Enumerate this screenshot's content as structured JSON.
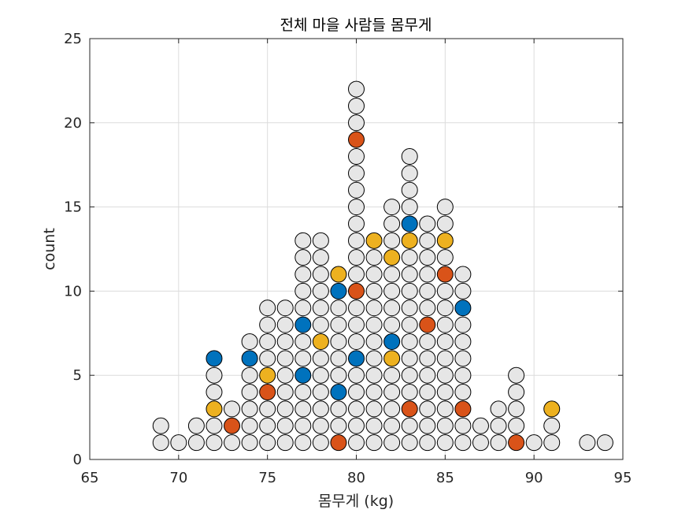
{
  "chart_data": {
    "type": "scatter",
    "title": "전체 마을 사람들 몸무게",
    "xlabel": "몸무게 (kg)",
    "ylabel": "count",
    "xlim": [
      65,
      95
    ],
    "ylim": [
      0,
      25
    ],
    "xticks": [
      65,
      70,
      75,
      80,
      85,
      90,
      95
    ],
    "yticks": [
      0,
      5,
      10,
      15,
      20,
      25
    ],
    "grid": true,
    "colors": {
      "default": "#e6e6e6",
      "blue": "#0072bd",
      "orange": "#d95319",
      "yellow": "#edb120",
      "edge": "#000000"
    },
    "column_heights": {
      "69": 2,
      "70": 1,
      "71": 2,
      "72": 6,
      "73": 3,
      "74": 7,
      "75": 9,
      "76": 9,
      "77": 13,
      "78": 13,
      "79": 11,
      "80": 22,
      "81": 13,
      "82": 15,
      "83": 18,
      "84": 14,
      "85": 15,
      "86": 11,
      "87": 2,
      "88": 3,
      "89": 5,
      "90": 1,
      "91": 3,
      "93": 1,
      "94": 1
    },
    "highlighted": [
      {
        "x": 72,
        "y": 6,
        "color": "blue"
      },
      {
        "x": 72,
        "y": 3,
        "color": "yellow"
      },
      {
        "x": 73,
        "y": 2,
        "color": "orange"
      },
      {
        "x": 74,
        "y": 6,
        "color": "blue"
      },
      {
        "x": 75,
        "y": 5,
        "color": "yellow"
      },
      {
        "x": 75,
        "y": 4,
        "color": "orange"
      },
      {
        "x": 77,
        "y": 8,
        "color": "blue"
      },
      {
        "x": 77,
        "y": 5,
        "color": "blue"
      },
      {
        "x": 78,
        "y": 7,
        "color": "yellow"
      },
      {
        "x": 79,
        "y": 11,
        "color": "yellow"
      },
      {
        "x": 79,
        "y": 10,
        "color": "blue"
      },
      {
        "x": 79,
        "y": 4,
        "color": "blue"
      },
      {
        "x": 79,
        "y": 1,
        "color": "orange"
      },
      {
        "x": 80,
        "y": 19,
        "color": "orange"
      },
      {
        "x": 80,
        "y": 10,
        "color": "orange"
      },
      {
        "x": 80,
        "y": 6,
        "color": "blue"
      },
      {
        "x": 81,
        "y": 13,
        "color": "yellow"
      },
      {
        "x": 82,
        "y": 12,
        "color": "yellow"
      },
      {
        "x": 82,
        "y": 7,
        "color": "blue"
      },
      {
        "x": 82,
        "y": 6,
        "color": "yellow"
      },
      {
        "x": 83,
        "y": 14,
        "color": "blue"
      },
      {
        "x": 83,
        "y": 13,
        "color": "yellow"
      },
      {
        "x": 83,
        "y": 3,
        "color": "orange"
      },
      {
        "x": 84,
        "y": 8,
        "color": "orange"
      },
      {
        "x": 85,
        "y": 13,
        "color": "yellow"
      },
      {
        "x": 85,
        "y": 11,
        "color": "orange"
      },
      {
        "x": 86,
        "y": 9,
        "color": "blue"
      },
      {
        "x": 86,
        "y": 3,
        "color": "orange"
      },
      {
        "x": 89,
        "y": 1,
        "color": "orange"
      },
      {
        "x": 91,
        "y": 3,
        "color": "yellow"
      }
    ]
  }
}
